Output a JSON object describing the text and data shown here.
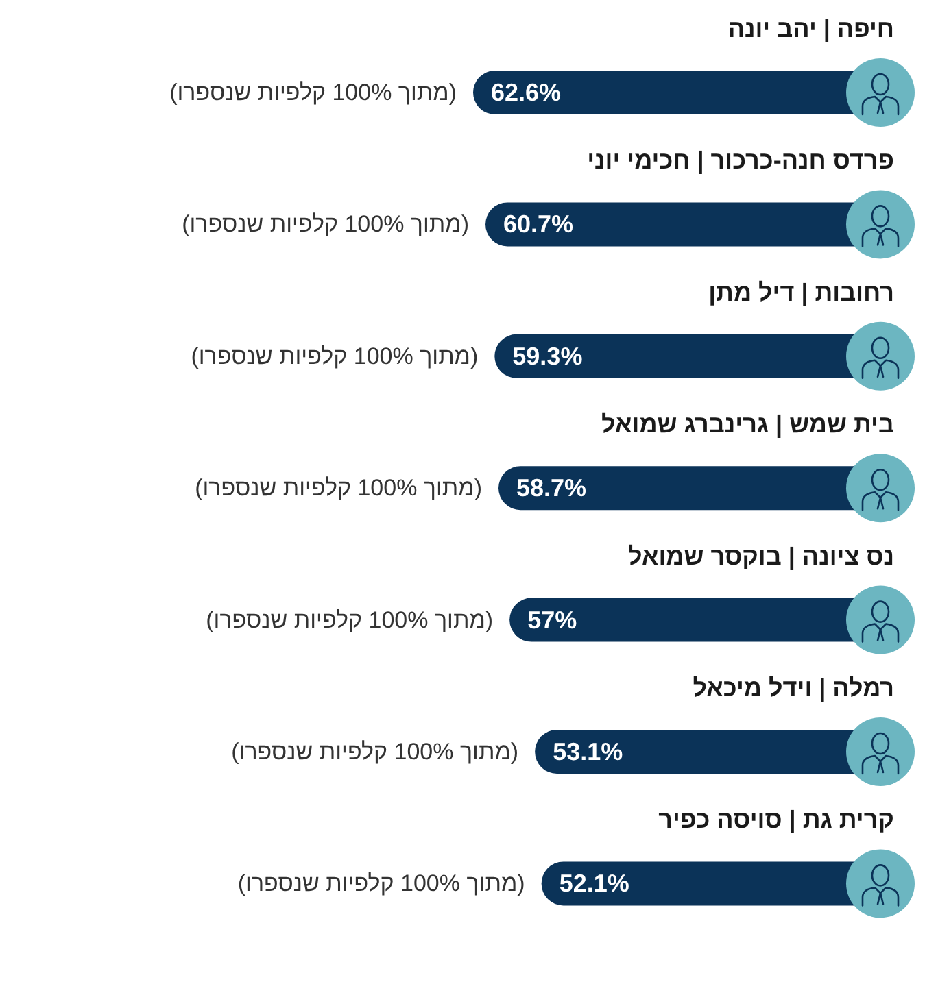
{
  "chart_data": {
    "type": "bar",
    "orientation": "horizontal",
    "categories": [
      "חיפה | יהב יונה",
      "פרדס חנה-כרכור | חכימי יוני",
      "רחובות | דיל מתן",
      "בית שמש | גרינברג שמואל",
      "נס ציונה | בוקסר שמואל",
      "רמלה | וידל מיכאל",
      "קרית גת | סויסה כפיר"
    ],
    "values": [
      62.6,
      60.7,
      59.3,
      58.7,
      57,
      53.1,
      52.1
    ],
    "color": "#0b3358",
    "value_labels": [
      "62.6%",
      "60.7%",
      "59.3%",
      "58.7%",
      "57%",
      "53.1%",
      "52.1%"
    ],
    "annotations": [
      "(מתוך 100% קלפיות שנספרו)",
      "(מתוך 100% קלפיות שנספרו)",
      "(מתוך 100% קלפיות שנספרו)",
      "(מתוך 100% קלפיות שנספרו)",
      "(מתוך 100% קלפיות שנספרו)",
      "(מתוך 100% קלפיות שנספרו)",
      "(מתוך 100% קלפיות שנספרו)"
    ]
  }
}
